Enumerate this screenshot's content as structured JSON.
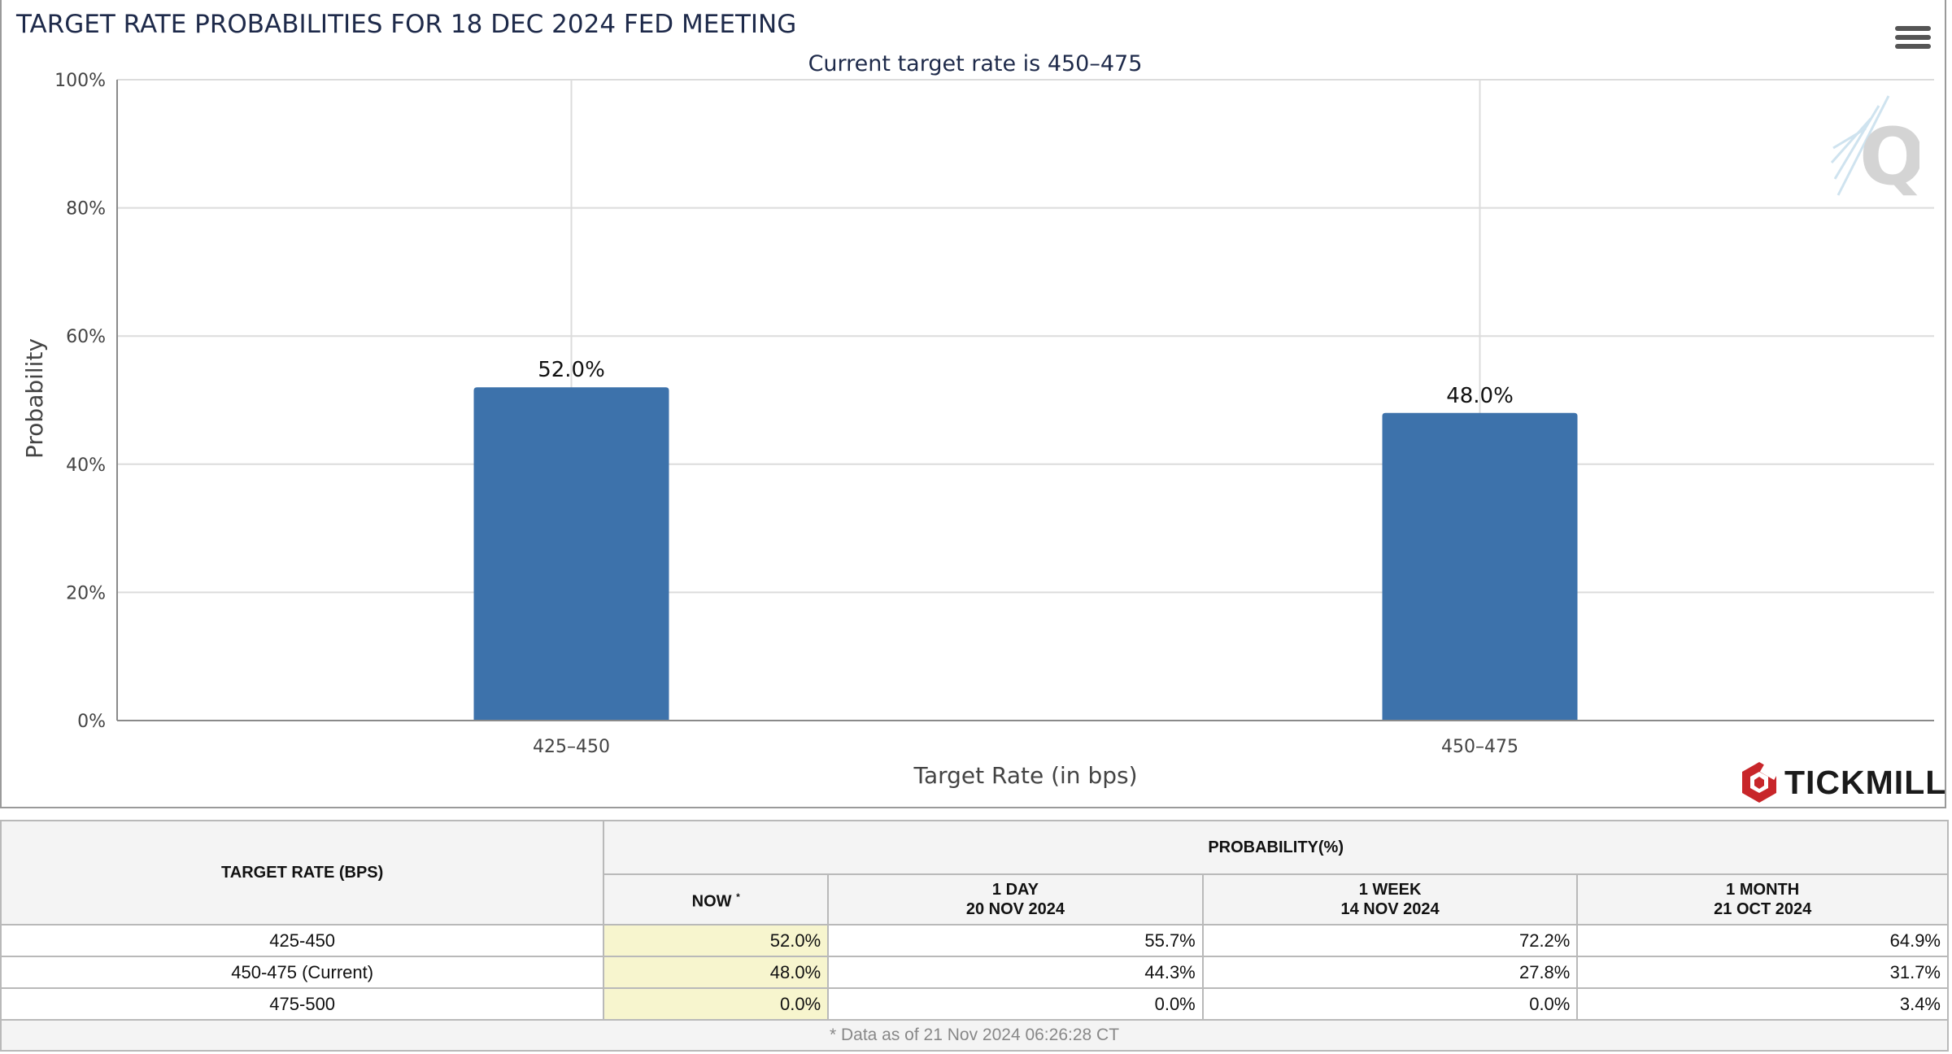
{
  "chart_data": {
    "type": "bar",
    "title": "TARGET RATE PROBABILITIES FOR 18 DEC 2024 FED MEETING",
    "subtitle": "Current target rate is 450–475",
    "xlabel": "Target Rate (in bps)",
    "ylabel": "Probability",
    "categories": [
      "425–450",
      "450–475"
    ],
    "values": [
      52.0,
      48.0
    ],
    "data_labels": [
      "52.0%",
      "48.0%"
    ],
    "ylim": [
      0,
      100
    ],
    "yticks": [
      "0%",
      "20%",
      "40%",
      "60%",
      "80%",
      "100%"
    ],
    "ytick_values": [
      0,
      20,
      40,
      60,
      80,
      100
    ],
    "grid": true,
    "bar_color": "#3d72ab"
  },
  "menu_icon": "hamburger-menu-icon",
  "watermark_letter": "Q",
  "brand": {
    "name": "TICKMILL",
    "logo_color": "#c8262a"
  },
  "table": {
    "rate_header": "TARGET RATE (BPS)",
    "probability_header": "PROBABILITY(%)",
    "columns": [
      {
        "line1": "NOW",
        "line2": "",
        "marker": "*"
      },
      {
        "line1": "1 DAY",
        "line2": "20 NOV 2024",
        "marker": ""
      },
      {
        "line1": "1 WEEK",
        "line2": "14 NOV 2024",
        "marker": ""
      },
      {
        "line1": "1 MONTH",
        "line2": "21 OCT 2024",
        "marker": ""
      }
    ],
    "rows": [
      {
        "rate": "425-450",
        "values": [
          "52.0%",
          "55.7%",
          "72.2%",
          "64.9%"
        ]
      },
      {
        "rate": "450-475 (Current)",
        "values": [
          "48.0%",
          "44.3%",
          "27.8%",
          "31.7%"
        ]
      },
      {
        "rate": "475-500",
        "values": [
          "0.0%",
          "0.0%",
          "0.0%",
          "3.4%"
        ]
      }
    ],
    "footnote": "* Data as of 21 Nov 2024 06:26:28 CT",
    "now_highlight_color": "#f7f5ce"
  }
}
